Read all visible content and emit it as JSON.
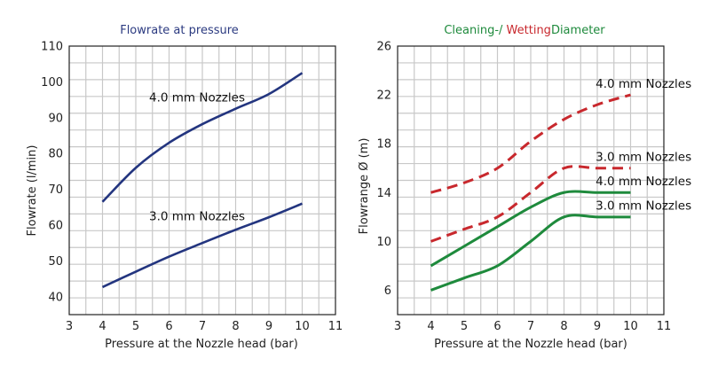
{
  "chart_data": [
    {
      "type": "line",
      "title": "Flowrate at pressure",
      "title_color": "#2b3a80",
      "xlabel": "Pressure at the Nozzle head (bar)",
      "ylabel": "Flowrate (l/min)",
      "xlim": [
        3,
        11
      ],
      "ylim": [
        35,
        110
      ],
      "xticks": [
        3,
        4,
        5,
        6,
        7,
        8,
        9,
        10,
        11
      ],
      "yticks": [
        40,
        50,
        60,
        70,
        80,
        90,
        100,
        110
      ],
      "grid": true,
      "series": [
        {
          "name": "4.0 mm Nozzles",
          "color": "#23357f",
          "style": "solid",
          "x": [
            4,
            5,
            6,
            7,
            8,
            9,
            10
          ],
          "y": [
            66.5,
            76,
            83,
            88.2,
            92.5,
            96.6,
            102.5
          ]
        },
        {
          "name": "3.0 mm Nozzles",
          "color": "#23357f",
          "style": "solid",
          "x": [
            4,
            5,
            6,
            7,
            8,
            9,
            10
          ],
          "y": [
            42.7,
            47,
            51.2,
            55,
            58.7,
            62.2,
            66
          ]
        }
      ],
      "annotations": [
        {
          "text": "4.0 mm Nozzles",
          "x": 5.4,
          "y": 94.5
        },
        {
          "text": "3.0 mm Nozzles",
          "x": 5.4,
          "y": 61.3
        }
      ]
    },
    {
      "type": "line",
      "title_parts": [
        {
          "text": "Cleaning-/ ",
          "color": "#1e8a3c"
        },
        {
          "text": "Wetting",
          "color": "#c8282d"
        },
        {
          "text": "Diameter",
          "color": "#1e8a3c"
        }
      ],
      "xlabel": "Pressure at the Nozzle head (bar)",
      "ylabel": "Flowrange Ø (m)",
      "xlim": [
        3,
        11
      ],
      "ylim": [
        4,
        26
      ],
      "xticks": [
        3,
        4,
        5,
        6,
        7,
        8,
        9,
        10,
        11
      ],
      "yticks": [
        6,
        10,
        14,
        18,
        22,
        26
      ],
      "grid": true,
      "series": [
        {
          "name": "Wetting 4.0 mm Nozzles",
          "color": "#c8282d",
          "style": "dashed",
          "x": [
            4,
            5,
            6,
            7,
            8,
            9,
            10
          ],
          "y": [
            14,
            14.8,
            16,
            18.2,
            20,
            21.2,
            22
          ]
        },
        {
          "name": "Wetting 3.0 mm Nozzles",
          "color": "#c8282d",
          "style": "dashed",
          "x": [
            4,
            5,
            6,
            7,
            8,
            9,
            10
          ],
          "y": [
            10,
            11,
            12,
            14,
            16,
            16,
            16
          ]
        },
        {
          "name": "Cleaning 4.0 mm Nozzles",
          "color": "#1e8a3c",
          "style": "solid",
          "x": [
            4,
            5,
            6,
            7,
            8,
            9,
            10
          ],
          "y": [
            8,
            9.6,
            11.2,
            12.8,
            14,
            14,
            14
          ]
        },
        {
          "name": "Cleaning 3.0 mm Nozzles",
          "color": "#1e8a3c",
          "style": "solid",
          "x": [
            4,
            5,
            6,
            7,
            8,
            9,
            10
          ],
          "y": [
            6,
            7,
            8,
            10,
            12,
            12,
            12
          ]
        }
      ],
      "annotations": [
        {
          "text": "4.0 mm Nozzles",
          "x": 8.95,
          "y": 22.6
        },
        {
          "text": "3.0 mm Nozzles",
          "x": 8.95,
          "y": 16.6
        },
        {
          "text": "4.0 mm Nozzles",
          "x": 8.95,
          "y": 14.6
        },
        {
          "text": "3.0 mm Nozzles",
          "x": 8.95,
          "y": 12.6
        }
      ]
    }
  ]
}
